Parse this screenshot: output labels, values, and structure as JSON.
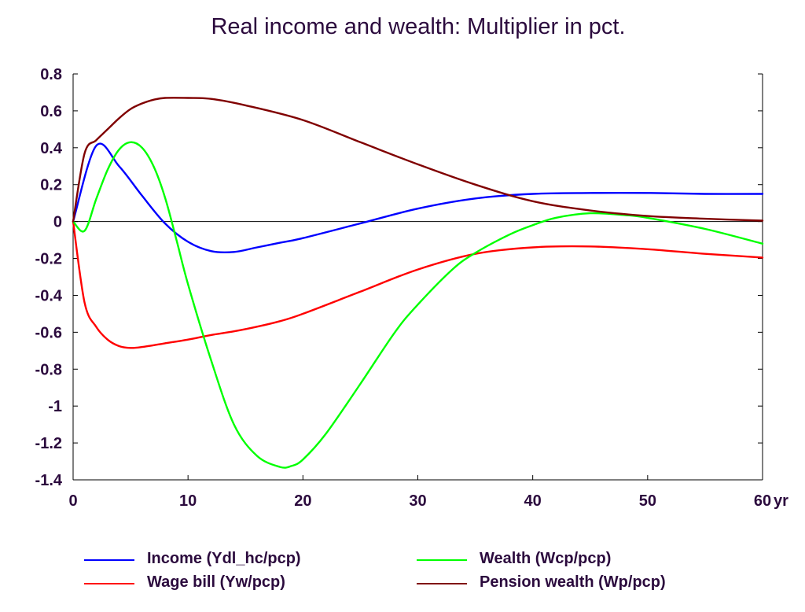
{
  "chart_data": {
    "type": "line",
    "title": "Real income and wealth: Multiplier in pct.",
    "xlabel": "",
    "ylabel": "",
    "x_unit_label": "yr",
    "xlim": [
      0,
      60
    ],
    "ylim": [
      -1.4,
      0.8
    ],
    "xticks": [
      0,
      10,
      20,
      30,
      40,
      50,
      60
    ],
    "xtick_labels": [
      "0",
      "10",
      "20",
      "30",
      "40",
      "50",
      "60"
    ],
    "yticks": [
      0.8,
      0.6,
      0.4,
      0.2,
      0,
      -0.2,
      -0.4,
      -0.6,
      -0.8,
      -1,
      -1.2,
      -1.4
    ],
    "ytick_labels": [
      "0.8",
      "0.6",
      "0.4",
      "0.2",
      "0",
      "-0.2",
      "-0.4",
      "-0.6",
      "-0.8",
      "-1",
      "-1.2",
      "-1.4"
    ],
    "grid": false,
    "zero_line": true,
    "legend_position": "bottom",
    "series": [
      {
        "name": "Income (Ydl_hc/pcp)",
        "color": "#0000ff",
        "points": [
          [
            0,
            0
          ],
          [
            2,
            0.41
          ],
          [
            4,
            0.3
          ],
          [
            6,
            0.14
          ],
          [
            8,
            -0.01
          ],
          [
            10,
            -0.11
          ],
          [
            12,
            -0.16
          ],
          [
            14,
            -0.165
          ],
          [
            16,
            -0.14
          ],
          [
            18,
            -0.115
          ],
          [
            20,
            -0.09
          ],
          [
            25,
            -0.01
          ],
          [
            30,
            0.07
          ],
          [
            35,
            0.125
          ],
          [
            40,
            0.15
          ],
          [
            45,
            0.155
          ],
          [
            50,
            0.155
          ],
          [
            55,
            0.15
          ],
          [
            60,
            0.15
          ]
        ]
      },
      {
        "name": "Wage bill (Yw/pcp)",
        "color": "#ff0000",
        "points": [
          [
            0,
            0
          ],
          [
            1,
            -0.44
          ],
          [
            2,
            -0.57
          ],
          [
            3,
            -0.64
          ],
          [
            4,
            -0.675
          ],
          [
            5,
            -0.685
          ],
          [
            6,
            -0.68
          ],
          [
            8,
            -0.66
          ],
          [
            10,
            -0.64
          ],
          [
            12,
            -0.615
          ],
          [
            14,
            -0.595
          ],
          [
            16,
            -0.57
          ],
          [
            18,
            -0.54
          ],
          [
            20,
            -0.5
          ],
          [
            25,
            -0.38
          ],
          [
            30,
            -0.26
          ],
          [
            35,
            -0.175
          ],
          [
            40,
            -0.14
          ],
          [
            45,
            -0.135
          ],
          [
            50,
            -0.15
          ],
          [
            55,
            -0.175
          ],
          [
            60,
            -0.195
          ]
        ]
      },
      {
        "name": "Wealth (Wcp/pcp)",
        "color": "#00ff00",
        "points": [
          [
            0,
            0
          ],
          [
            1,
            -0.05
          ],
          [
            2,
            0.12
          ],
          [
            3,
            0.28
          ],
          [
            4,
            0.39
          ],
          [
            5,
            0.43
          ],
          [
            6,
            0.4
          ],
          [
            7,
            0.3
          ],
          [
            8,
            0.13
          ],
          [
            9,
            -0.1
          ],
          [
            10,
            -0.34
          ],
          [
            12,
            -0.75
          ],
          [
            14,
            -1.1
          ],
          [
            16,
            -1.27
          ],
          [
            18,
            -1.33
          ],
          [
            19,
            -1.325
          ],
          [
            20,
            -1.29
          ],
          [
            22,
            -1.15
          ],
          [
            25,
            -0.88
          ],
          [
            28,
            -0.6
          ],
          [
            30,
            -0.45
          ],
          [
            33,
            -0.26
          ],
          [
            35,
            -0.17
          ],
          [
            38,
            -0.07
          ],
          [
            40,
            -0.02
          ],
          [
            42,
            0.02
          ],
          [
            45,
            0.045
          ],
          [
            48,
            0.035
          ],
          [
            50,
            0.02
          ],
          [
            55,
            -0.04
          ],
          [
            60,
            -0.12
          ]
        ]
      },
      {
        "name": "Pension wealth (Wp/pcp)",
        "color": "#800000",
        "points": [
          [
            0,
            0
          ],
          [
            1,
            0.37
          ],
          [
            2,
            0.44
          ],
          [
            3,
            0.5
          ],
          [
            4,
            0.56
          ],
          [
            5,
            0.61
          ],
          [
            6,
            0.64
          ],
          [
            7,
            0.66
          ],
          [
            8,
            0.67
          ],
          [
            10,
            0.67
          ],
          [
            12,
            0.665
          ],
          [
            15,
            0.63
          ],
          [
            20,
            0.55
          ],
          [
            25,
            0.43
          ],
          [
            30,
            0.31
          ],
          [
            35,
            0.2
          ],
          [
            40,
            0.11
          ],
          [
            45,
            0.06
          ],
          [
            50,
            0.03
          ],
          [
            55,
            0.015
          ],
          [
            60,
            0.005
          ]
        ]
      }
    ]
  }
}
